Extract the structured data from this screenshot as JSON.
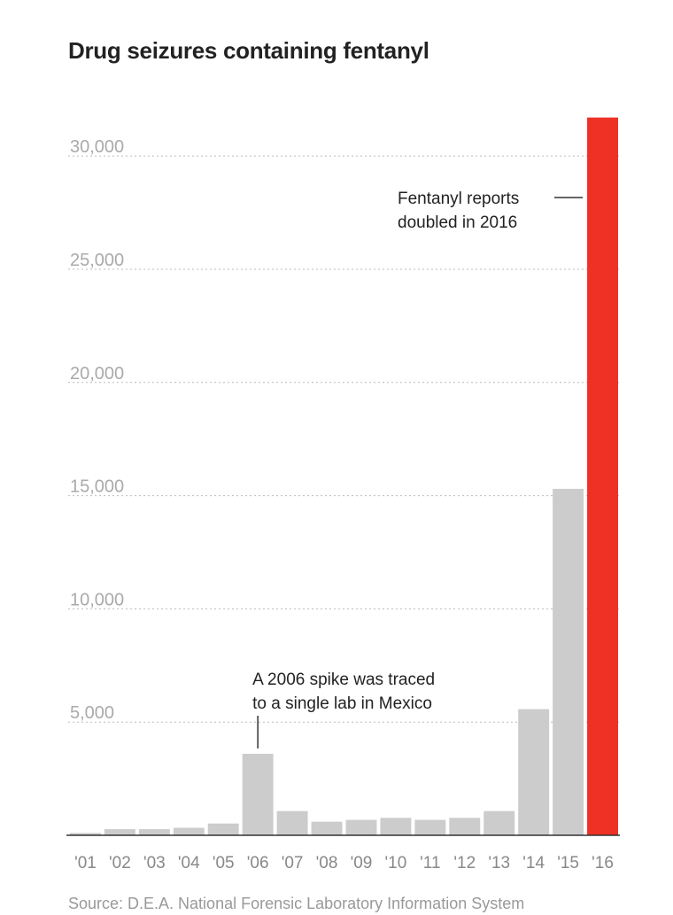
{
  "title": "Drug seizures containing fentanyl",
  "source": "Source: D.E.A. National Forensic Laboratory Information System",
  "colors": {
    "bar": "#cccccc",
    "highlight": "#ee3124",
    "grid": "#bbbbbb",
    "axis": "#333333"
  },
  "chart_data": {
    "type": "bar",
    "title": "Drug seizures containing fentanyl",
    "categories": [
      "'01",
      "'02",
      "'03",
      "'04",
      "'05",
      "'06",
      "'07",
      "'08",
      "'09",
      "'10",
      "'11",
      "'12",
      "'13",
      "'14",
      "'15",
      "'16"
    ],
    "values": [
      100,
      270,
      270,
      330,
      520,
      3600,
      1070,
      600,
      680,
      770,
      680,
      770,
      1070,
      5570,
      15300,
      31700
    ],
    "highlight_category": "'16",
    "ylim": [
      0,
      32000
    ],
    "yticks": [
      5000,
      10000,
      15000,
      20000,
      25000,
      30000
    ],
    "ytick_labels": [
      "5,000",
      "10,000",
      "15,000",
      "20,000",
      "25,000",
      "30,000"
    ],
    "xlabel": "",
    "ylabel": "",
    "grid": true,
    "annotations": [
      {
        "lines": [
          "A 2006 spike was traced",
          "to a single lab in Mexico"
        ],
        "category": "'06"
      },
      {
        "lines": [
          "Fentanyl reports",
          "doubled in 2016"
        ],
        "category": "'16"
      }
    ]
  }
}
